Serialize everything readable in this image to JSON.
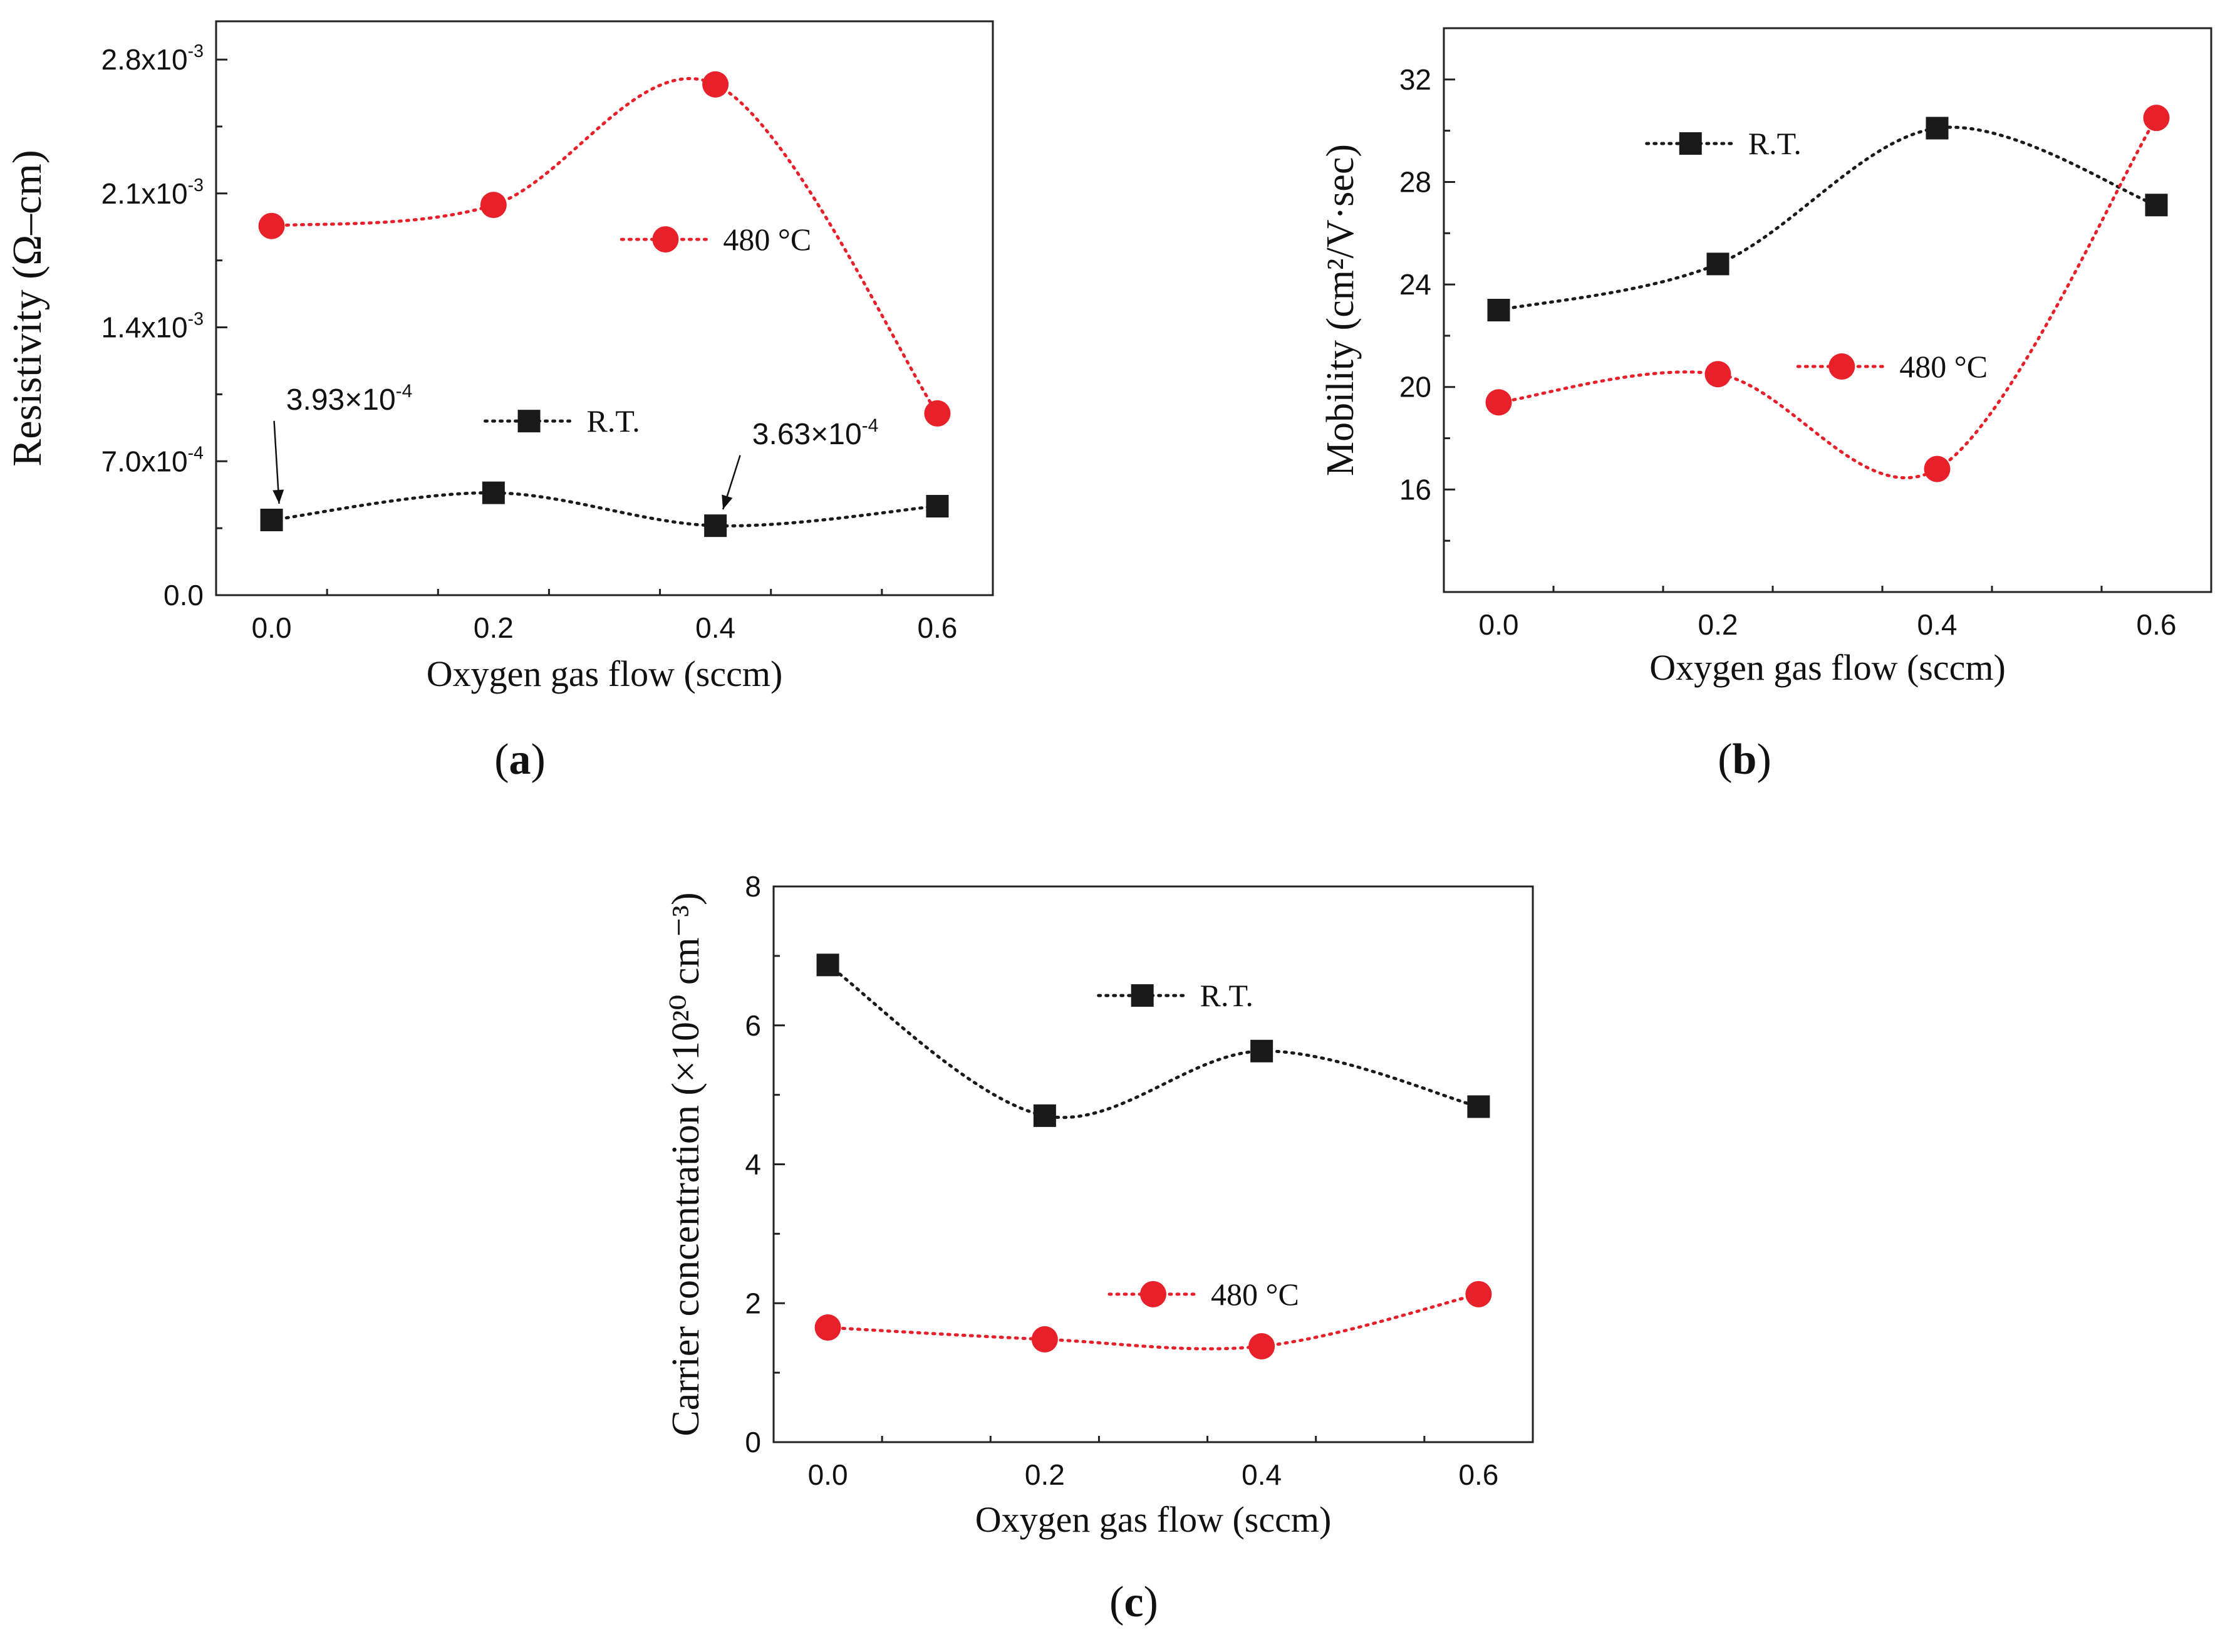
{
  "chart_data": [
    {
      "type": "line",
      "panel_label": "a",
      "xlabel": "Oxygen gas flow (sccm)",
      "ylabel": "Resistivity (Ω–cm)",
      "x": [
        0.0,
        0.2,
        0.4,
        0.6
      ],
      "xlim": [
        -0.05,
        0.65
      ],
      "xticks": [
        0.0,
        0.2,
        0.4,
        0.6
      ],
      "xtick_labels": [
        "0.0",
        "0.2",
        "0.4",
        "0.6"
      ],
      "ylim": [
        0.0,
        0.003
      ],
      "yticks": [
        0.0,
        0.0007,
        0.0014,
        0.0021,
        0.0028
      ],
      "ytick_labels": [
        {
          "mant": "0.0",
          "exp": ""
        },
        {
          "mant": "7.0x10",
          "exp": "-4"
        },
        {
          "mant": "1.4x10",
          "exp": "-3"
        },
        {
          "mant": "2.1x10",
          "exp": "-3"
        },
        {
          "mant": "2.8x10",
          "exp": "-3"
        }
      ],
      "series": [
        {
          "name": "480 °C",
          "color": "#e8202a",
          "marker": "circle",
          "values": [
            0.00193,
            0.00204,
            0.00267,
            0.00095
          ]
        },
        {
          "name": "R.T.",
          "color": "#1a1a1a",
          "marker": "square",
          "values": [
            0.000393,
            0.000535,
            0.000363,
            0.000465
          ]
        }
      ],
      "legend": [
        {
          "series": 0,
          "label": "480 °C",
          "x": 0.355,
          "y": 0.00186
        },
        {
          "series": 1,
          "label": "R.T.",
          "x": 0.232,
          "y": 0.00091
        }
      ],
      "annotations": [
        {
          "mant": "3.93×10",
          "exp": "-4",
          "x": 0.0,
          "y": 0.000393,
          "tx": 0.07,
          "ty": 0.00097
        },
        {
          "mant": "3.63×10",
          "exp": "-4",
          "x": 0.4,
          "y": 0.000363,
          "tx": 0.49,
          "ty": 0.00079
        }
      ]
    },
    {
      "type": "line",
      "panel_label": "b",
      "xlabel": "Oxygen gas flow (sccm)",
      "ylabel": "Mobility (cm²/V·sec)",
      "x": [
        0.0,
        0.2,
        0.4,
        0.6
      ],
      "xlim": [
        -0.05,
        0.65
      ],
      "xticks": [
        0.0,
        0.2,
        0.4,
        0.6
      ],
      "xtick_labels": [
        "0.0",
        "0.2",
        "0.4",
        "0.6"
      ],
      "ylim": [
        12,
        34
      ],
      "yticks": [
        16,
        20,
        24,
        28,
        32
      ],
      "ytick_labels": [
        {
          "mant": "16",
          "exp": ""
        },
        {
          "mant": "20",
          "exp": ""
        },
        {
          "mant": "24",
          "exp": ""
        },
        {
          "mant": "28",
          "exp": ""
        },
        {
          "mant": "32",
          "exp": ""
        }
      ],
      "series": [
        {
          "name": "R.T.",
          "color": "#1a1a1a",
          "marker": "square",
          "values": [
            23.0,
            24.8,
            30.1,
            27.1
          ]
        },
        {
          "name": "480 °C",
          "color": "#e8202a",
          "marker": "circle",
          "values": [
            19.4,
            20.5,
            16.8,
            30.5
          ]
        }
      ],
      "legend": [
        {
          "series": 0,
          "label": "R.T.",
          "x": 0.175,
          "y": 29.5
        },
        {
          "series": 1,
          "label": "480 °C",
          "x": 0.313,
          "y": 20.8
        }
      ],
      "annotations": []
    },
    {
      "type": "line",
      "panel_label": "c",
      "xlabel": "Oxygen gas flow (sccm)",
      "ylabel": "Carrier concentration (×10²⁰ cm⁻³)",
      "x": [
        0.0,
        0.2,
        0.4,
        0.6
      ],
      "xlim": [
        -0.05,
        0.65
      ],
      "xticks": [
        0.0,
        0.2,
        0.4,
        0.6
      ],
      "xtick_labels": [
        "0.0",
        "0.2",
        "0.4",
        "0.6"
      ],
      "ylim": [
        0,
        8
      ],
      "yticks": [
        0,
        2,
        4,
        6,
        8
      ],
      "ytick_labels": [
        {
          "mant": "0",
          "exp": ""
        },
        {
          "mant": "2",
          "exp": ""
        },
        {
          "mant": "4",
          "exp": ""
        },
        {
          "mant": "6",
          "exp": ""
        },
        {
          "mant": "8",
          "exp": ""
        }
      ],
      "series": [
        {
          "name": "R.T.",
          "color": "#1a1a1a",
          "marker": "square",
          "values": [
            6.87,
            4.7,
            5.63,
            4.83
          ]
        },
        {
          "name": "480 °C",
          "color": "#e8202a",
          "marker": "circle",
          "values": [
            1.65,
            1.48,
            1.38,
            2.13
          ]
        }
      ],
      "legend": [
        {
          "series": 0,
          "label": "R.T.",
          "x": 0.29,
          "y": 6.43
        },
        {
          "series": 1,
          "label": "480 °C",
          "x": 0.3,
          "y": 2.13
        }
      ],
      "annotations": []
    }
  ]
}
